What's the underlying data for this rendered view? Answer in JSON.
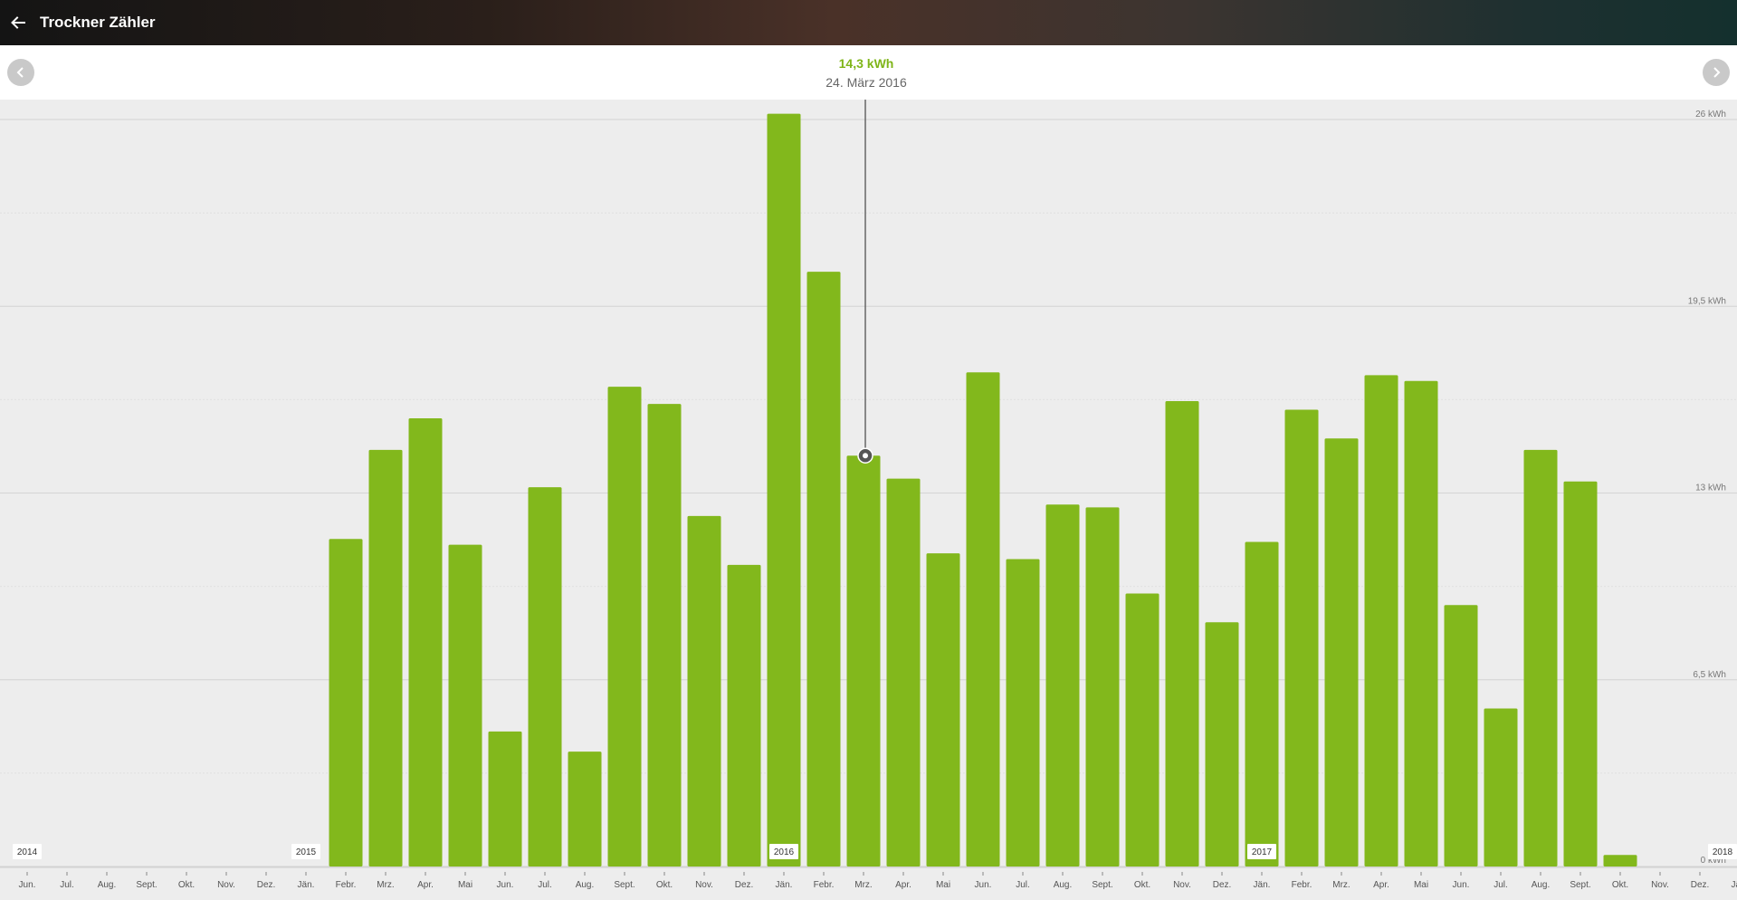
{
  "app": {
    "title": "Trockner Zähler",
    "back_icon": "arrow-left-icon"
  },
  "header": {
    "value": "14,3 kWh",
    "date": "24. März 2016"
  },
  "nav": {
    "prev_icon": "chevron-left-icon",
    "next_icon": "chevron-right-icon"
  },
  "colors": {
    "bar": "#82b81c",
    "accent": "#7fb519"
  },
  "chart_data": {
    "type": "bar",
    "ylabel": "kWh",
    "ylim": [
      0,
      26
    ],
    "y_ticks": [
      "0 kWh",
      "6,5 kWh",
      "13 kWh",
      "19,5 kWh",
      "26 kWh"
    ],
    "year_markers": [
      "2014",
      "2015",
      "2016",
      "2017",
      "2018"
    ],
    "categories": [
      "Jun.",
      "Jul.",
      "Aug.",
      "Sept.",
      "Okt.",
      "Nov.",
      "Dez.",
      "Jän.",
      "Febr.",
      "Mrz.",
      "Apr.",
      "Mai",
      "Jun.",
      "Jul.",
      "Aug.",
      "Sept.",
      "Okt.",
      "Nov.",
      "Dez.",
      "Jän.",
      "Febr.",
      "Mrz.",
      "Apr.",
      "Mai",
      "Jun.",
      "Jul.",
      "Aug.",
      "Sept.",
      "Okt.",
      "Nov.",
      "Dez.",
      "Jän.",
      "Febr.",
      "Mrz.",
      "Apr.",
      "Mai",
      "Jun.",
      "Jul.",
      "Aug.",
      "Sept.",
      "Okt.",
      "Nov.",
      "Dez.",
      "Jän."
    ],
    "values": [
      0,
      0,
      0,
      0,
      0,
      0,
      0,
      0,
      11.4,
      14.5,
      15.6,
      11.2,
      4.7,
      13.2,
      4.0,
      16.7,
      16.1,
      12.2,
      10.5,
      26.2,
      20.7,
      14.3,
      13.5,
      10.9,
      17.2,
      10.7,
      12.6,
      12.5,
      9.5,
      16.2,
      8.5,
      11.3,
      15.9,
      14.9,
      17.1,
      16.9,
      9.1,
      5.5,
      14.5,
      13.4,
      0.4,
      0,
      0,
      0
    ],
    "selected": {
      "category": "Mrz.",
      "value": 14.3,
      "date": "24. März 2016"
    },
    "grid": true
  }
}
